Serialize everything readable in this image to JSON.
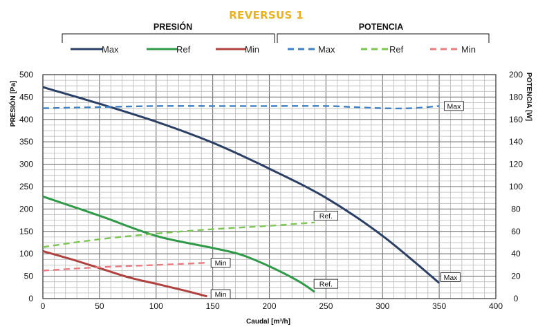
{
  "chart_data": {
    "type": "line",
    "title": "REVERSUS 1",
    "xlabel": "Caudal [m³/h]",
    "ylabel": "PRESIÓN [Pa]",
    "y2label": "POTENCIA [W]",
    "xlim": [
      0,
      400
    ],
    "ylim": [
      0,
      500
    ],
    "y2lim": [
      0,
      200
    ],
    "x_ticks": [
      0,
      50,
      100,
      150,
      200,
      250,
      300,
      350,
      400
    ],
    "y_ticks": [
      0,
      50,
      100,
      150,
      200,
      250,
      300,
      350,
      400,
      450,
      500
    ],
    "y2_ticks": [
      0,
      20,
      40,
      60,
      80,
      100,
      120,
      140,
      160,
      180,
      200
    ],
    "grid": true,
    "legend_groups": [
      {
        "title": "PRESIÓN",
        "entries": [
          "Max",
          "Ref",
          "Min"
        ]
      },
      {
        "title": "POTENCIA",
        "entries": [
          "Max",
          "Ref",
          "Min"
        ]
      }
    ],
    "series": [
      {
        "name": "Max",
        "group": "PRESIÓN",
        "axis": "left",
        "style": "solid",
        "color": "#2b3f66",
        "x": [
          0,
          50,
          100,
          150,
          200,
          250,
          300,
          350
        ],
        "y": [
          472,
          435,
          395,
          348,
          290,
          225,
          140,
          35
        ]
      },
      {
        "name": "Ref",
        "group": "PRESIÓN",
        "axis": "left",
        "style": "solid",
        "color": "#2e9a47",
        "x": [
          0,
          50,
          100,
          150,
          175,
          200,
          225,
          240
        ],
        "y": [
          228,
          185,
          140,
          113,
          98,
          72,
          40,
          15
        ]
      },
      {
        "name": "Min",
        "group": "PRESIÓN",
        "axis": "left",
        "style": "solid",
        "color": "#b0413e",
        "x": [
          0,
          25,
          50,
          75,
          100,
          125,
          145
        ],
        "y": [
          106,
          88,
          68,
          48,
          33,
          18,
          5
        ]
      },
      {
        "name": "Max",
        "group": "POTENCIA",
        "axis": "right",
        "style": "dashed",
        "color": "#3f80c4",
        "x": [
          0,
          50,
          100,
          150,
          200,
          250,
          275,
          300,
          325,
          350
        ],
        "y": [
          170,
          171,
          172,
          172,
          172,
          172,
          171,
          170,
          170,
          172
        ]
      },
      {
        "name": "Ref",
        "group": "POTENCIA",
        "axis": "right",
        "style": "dashed",
        "color": "#7bc653",
        "x": [
          0,
          50,
          100,
          150,
          200,
          240
        ],
        "y": [
          46,
          53,
          58,
          62,
          65,
          68
        ]
      },
      {
        "name": "Min",
        "group": "POTENCIA",
        "axis": "right",
        "style": "dashed",
        "color": "#ea7c80",
        "x": [
          0,
          50,
          100,
          145
        ],
        "y": [
          25,
          28,
          30,
          32
        ]
      }
    ],
    "annotations": [
      {
        "text": "Max",
        "x": 363,
        "y": 172,
        "axis": "right"
      },
      {
        "text": "Ref.",
        "x": 250,
        "y": 74,
        "axis": "right"
      },
      {
        "text": "Min",
        "x": 157,
        "y": 32,
        "axis": "right"
      },
      {
        "text": "Max",
        "x": 360,
        "y": 48,
        "axis": "left"
      },
      {
        "text": "Ref.",
        "x": 250,
        "y": 33,
        "axis": "left"
      },
      {
        "text": "Min",
        "x": 157,
        "y": 10,
        "axis": "left"
      }
    ]
  }
}
